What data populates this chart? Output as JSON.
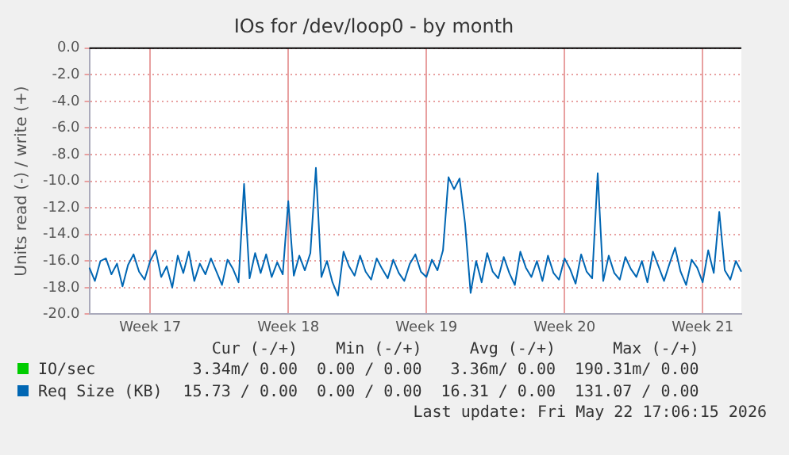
{
  "chart_data": {
    "type": "line",
    "title": "IOs for /dev/loop0 - by month",
    "ylabel": "Units read (-) / write (+)",
    "categories": [
      null,
      null,
      null,
      null,
      null,
      null,
      null,
      null,
      null,
      null,
      null,
      "Week 17",
      null,
      null,
      null,
      null,
      null,
      null,
      null,
      null,
      null,
      null,
      null,
      null,
      null,
      null,
      null,
      null,
      null,
      null,
      null,
      null,
      null,
      null,
      null,
      null,
      "Week 18",
      null,
      null,
      null,
      null,
      null,
      null,
      null,
      null,
      null,
      null,
      null,
      null,
      null,
      null,
      null,
      null,
      null,
      null,
      null,
      null,
      null,
      null,
      null,
      null,
      "Week 19",
      null,
      null,
      null,
      null,
      null,
      null,
      null,
      null,
      null,
      null,
      null,
      null,
      null,
      null,
      null,
      null,
      null,
      null,
      null,
      null,
      null,
      null,
      null,
      null,
      "Week 20",
      null,
      null,
      null,
      null,
      null,
      null,
      null,
      null,
      null,
      null,
      null,
      null,
      null,
      null,
      null,
      null,
      null,
      null,
      null,
      null,
      null,
      null,
      null,
      null,
      "Week 21",
      null,
      null,
      null,
      null,
      null,
      null,
      null
    ],
    "series": [
      {
        "name": "IO/sec",
        "color": "#00cc00",
        "values": [
          null,
          null,
          null,
          null,
          null,
          null,
          null,
          null,
          null,
          null,
          null,
          null,
          null,
          null,
          null,
          null,
          null,
          null,
          null,
          null,
          null,
          null,
          null,
          null,
          null,
          null,
          null,
          null,
          null,
          null,
          null,
          null,
          null,
          null,
          null,
          null,
          null,
          null,
          null,
          null,
          null,
          null,
          null,
          null,
          null,
          null,
          null,
          null,
          null,
          null,
          null,
          null,
          null,
          null,
          null,
          null,
          null,
          null,
          null,
          null,
          null,
          null,
          null,
          null,
          null,
          null,
          null,
          null,
          null,
          null,
          null,
          null,
          null,
          null,
          null,
          null,
          null,
          null,
          null,
          null,
          null,
          null,
          null,
          null,
          null,
          null,
          null,
          null,
          null,
          null,
          null,
          null,
          null,
          null,
          null,
          null,
          null,
          null,
          null,
          null,
          null,
          null,
          null,
          null,
          null,
          null,
          null,
          null,
          null,
          null,
          null,
          null,
          null,
          null,
          null,
          null,
          null,
          null,
          null
        ]
      },
      {
        "name": "Req Size (KB)",
        "color": "#0066b3",
        "values": [
          -16.5,
          -17.5,
          -16.0,
          -15.8,
          -17.0,
          -16.2,
          -17.9,
          -16.3,
          -15.5,
          -16.8,
          -17.4,
          -16.0,
          -15.2,
          -17.2,
          -16.4,
          -18.0,
          -15.6,
          -16.9,
          -15.3,
          -17.5,
          -16.2,
          -17.0,
          -15.8,
          -16.8,
          -17.8,
          -15.9,
          -16.6,
          -17.6,
          -10.2,
          -17.3,
          -15.4,
          -16.9,
          -15.5,
          -17.2,
          -16.1,
          -17.0,
          -11.5,
          -17.1,
          -15.6,
          -16.7,
          -15.4,
          -9.0,
          -17.2,
          -16.0,
          -17.6,
          -18.6,
          -15.3,
          -16.4,
          -17.1,
          -15.6,
          -16.8,
          -17.4,
          -15.8,
          -16.6,
          -17.3,
          -15.9,
          -16.9,
          -17.5,
          -16.2,
          -15.5,
          -16.8,
          -17.2,
          -15.9,
          -16.7,
          -15.2,
          -9.7,
          -10.6,
          -9.8,
          -13.2,
          -18.4,
          -16.0,
          -17.6,
          -15.4,
          -16.8,
          -17.3,
          -15.7,
          -16.9,
          -17.8,
          -15.3,
          -16.5,
          -17.2,
          -16.0,
          -17.5,
          -15.6,
          -16.9,
          -17.4,
          -15.8,
          -16.6,
          -17.7,
          -15.5,
          -16.8,
          -17.3,
          -9.4,
          -17.5,
          -15.6,
          -16.9,
          -17.4,
          -15.7,
          -16.6,
          -17.2,
          -16.0,
          -17.6,
          -15.3,
          -16.4,
          -17.5,
          -16.2,
          -15.0,
          -16.8,
          -17.8,
          -15.9,
          -16.5,
          -17.6,
          -15.2,
          -16.9,
          -12.3,
          -16.7,
          -17.4,
          -16.0,
          -16.8
        ]
      }
    ],
    "ylim": [
      -20,
      0
    ],
    "yticks": [
      {
        "value": -20,
        "label": "-20.0"
      },
      {
        "value": -18,
        "label": "-18.0"
      },
      {
        "value": -16,
        "label": "-16.0"
      },
      {
        "value": -14,
        "label": "-14.0"
      },
      {
        "value": -12,
        "label": "-12.0"
      },
      {
        "value": -10,
        "label": "-10.0"
      },
      {
        "value": -8,
        "label": "-8.0"
      },
      {
        "value": -6,
        "label": "-6.0"
      },
      {
        "value": -4,
        "label": "-4.0"
      },
      {
        "value": -2,
        "label": "-2.0"
      },
      {
        "value": 0,
        "label": "0.0"
      }
    ],
    "grid": true,
    "legend": "bottom",
    "annotations": [
      "Cur (-/+)",
      "Min (-/+)",
      "Avg (-/+)",
      "Max (-/+)",
      "3.34m/ 0.00",
      "0.00 / 0.00",
      "3.36m/ 0.00",
      "190.31m/ 0.00",
      "15.73 / 0.00",
      "0.00 / 0.00",
      "16.31 / 0.00",
      "131.07 / 0.00",
      "Last update: Fri May 22 17:06:15 2026"
    ]
  }
}
